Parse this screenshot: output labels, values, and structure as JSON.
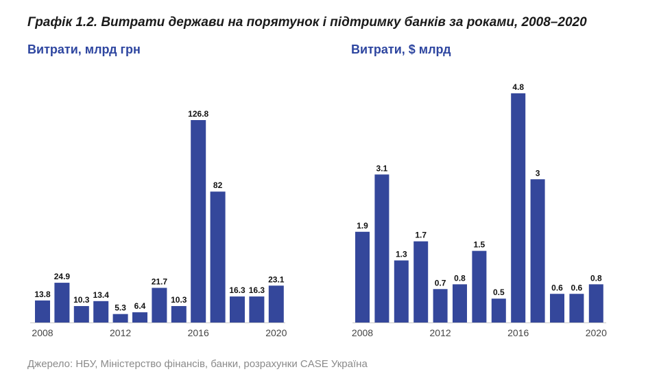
{
  "title": "Графік 1.2. Витрати держави на порятунок і підтримку банків за роками, 2008–2020",
  "source": "Джерело: НБУ, Міністерство фінансів, банки, розрахунки CASE Україна",
  "colors": {
    "bar": "#34479b",
    "axis": "#c8c8c8",
    "label": "#111111",
    "tick": "#444444",
    "subtitle": "#2e46a0"
  },
  "chart_data": [
    {
      "type": "bar",
      "title": "Витрати, млрд грн",
      "categories": [
        "2008",
        "2009",
        "2010",
        "2011",
        "2012",
        "2013",
        "2014",
        "2015",
        "2016",
        "2017",
        "2018",
        "2019",
        "2020"
      ],
      "values": [
        13.8,
        24.9,
        10.3,
        13.4,
        5.3,
        6.4,
        21.7,
        10.3,
        126.8,
        82,
        16.3,
        16.3,
        23.1
      ],
      "labels": [
        "13.8",
        "24.9",
        "10.3",
        "13.4",
        "5.3",
        "6.4",
        "21.7",
        "10.3",
        "126.8",
        "82",
        "16.3",
        "16.3",
        "23.1"
      ],
      "xticks": [
        "2008",
        "2012",
        "2016",
        "2020"
      ],
      "ylim": [
        0,
        126.8
      ]
    },
    {
      "type": "bar",
      "title": "Витрати, $ млрд",
      "categories": [
        "2008",
        "2009",
        "2010",
        "2011",
        "2012",
        "2013",
        "2014",
        "2015",
        "2016",
        "2017",
        "2018",
        "2019",
        "2020"
      ],
      "values": [
        1.9,
        3.1,
        1.3,
        1.7,
        0.7,
        0.8,
        1.5,
        0.5,
        4.8,
        3,
        0.6,
        0.6,
        0.8
      ],
      "labels": [
        "1.9",
        "3.1",
        "1.3",
        "1.7",
        "0.7",
        "0.8",
        "1.5",
        "0.5",
        "4.8",
        "3",
        "0.6",
        "0.6",
        "0.8"
      ],
      "xticks": [
        "2008",
        "2012",
        "2016",
        "2020"
      ],
      "ylim": [
        0,
        4.8
      ]
    }
  ]
}
